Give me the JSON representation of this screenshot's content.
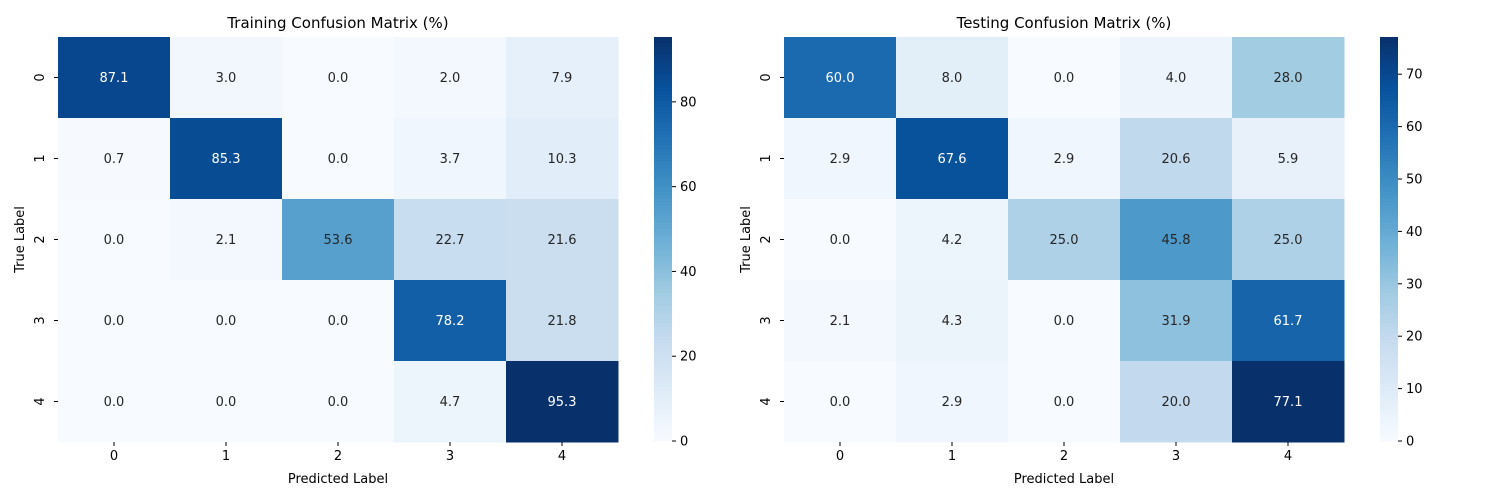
{
  "chart_data": [
    {
      "type": "heatmap",
      "title": "Training Confusion Matrix (%)",
      "xlabel": "Predicted Label",
      "ylabel": "True Label",
      "x_categories": [
        "0",
        "1",
        "2",
        "3",
        "4"
      ],
      "y_categories": [
        "0",
        "1",
        "2",
        "3",
        "4"
      ],
      "values": [
        [
          87.1,
          3.0,
          0.0,
          2.0,
          7.9
        ],
        [
          0.7,
          85.3,
          0.0,
          3.7,
          10.3
        ],
        [
          0.0,
          2.1,
          53.6,
          22.7,
          21.6
        ],
        [
          0.0,
          0.0,
          0.0,
          78.2,
          21.8
        ],
        [
          0.0,
          0.0,
          0.0,
          4.7,
          95.3
        ]
      ],
      "colormap": "Blues",
      "color_range": [
        0,
        95.3
      ],
      "colorbar_ticks": [
        0,
        20,
        40,
        60,
        80
      ]
    },
    {
      "type": "heatmap",
      "title": "Testing Confusion Matrix (%)",
      "xlabel": "Predicted Label",
      "ylabel": "True Label",
      "x_categories": [
        "0",
        "1",
        "2",
        "3",
        "4"
      ],
      "y_categories": [
        "0",
        "1",
        "2",
        "3",
        "4"
      ],
      "values": [
        [
          60.0,
          8.0,
          0.0,
          4.0,
          28.0
        ],
        [
          2.9,
          67.6,
          2.9,
          20.6,
          5.9
        ],
        [
          0.0,
          4.2,
          25.0,
          45.8,
          25.0
        ],
        [
          2.1,
          4.3,
          0.0,
          31.9,
          61.7
        ],
        [
          0.0,
          2.9,
          0.0,
          20.0,
          77.1
        ]
      ],
      "colormap": "Blues",
      "color_range": [
        0,
        77.1
      ],
      "colorbar_ticks": [
        0,
        10,
        20,
        30,
        40,
        50,
        60,
        70
      ]
    }
  ]
}
